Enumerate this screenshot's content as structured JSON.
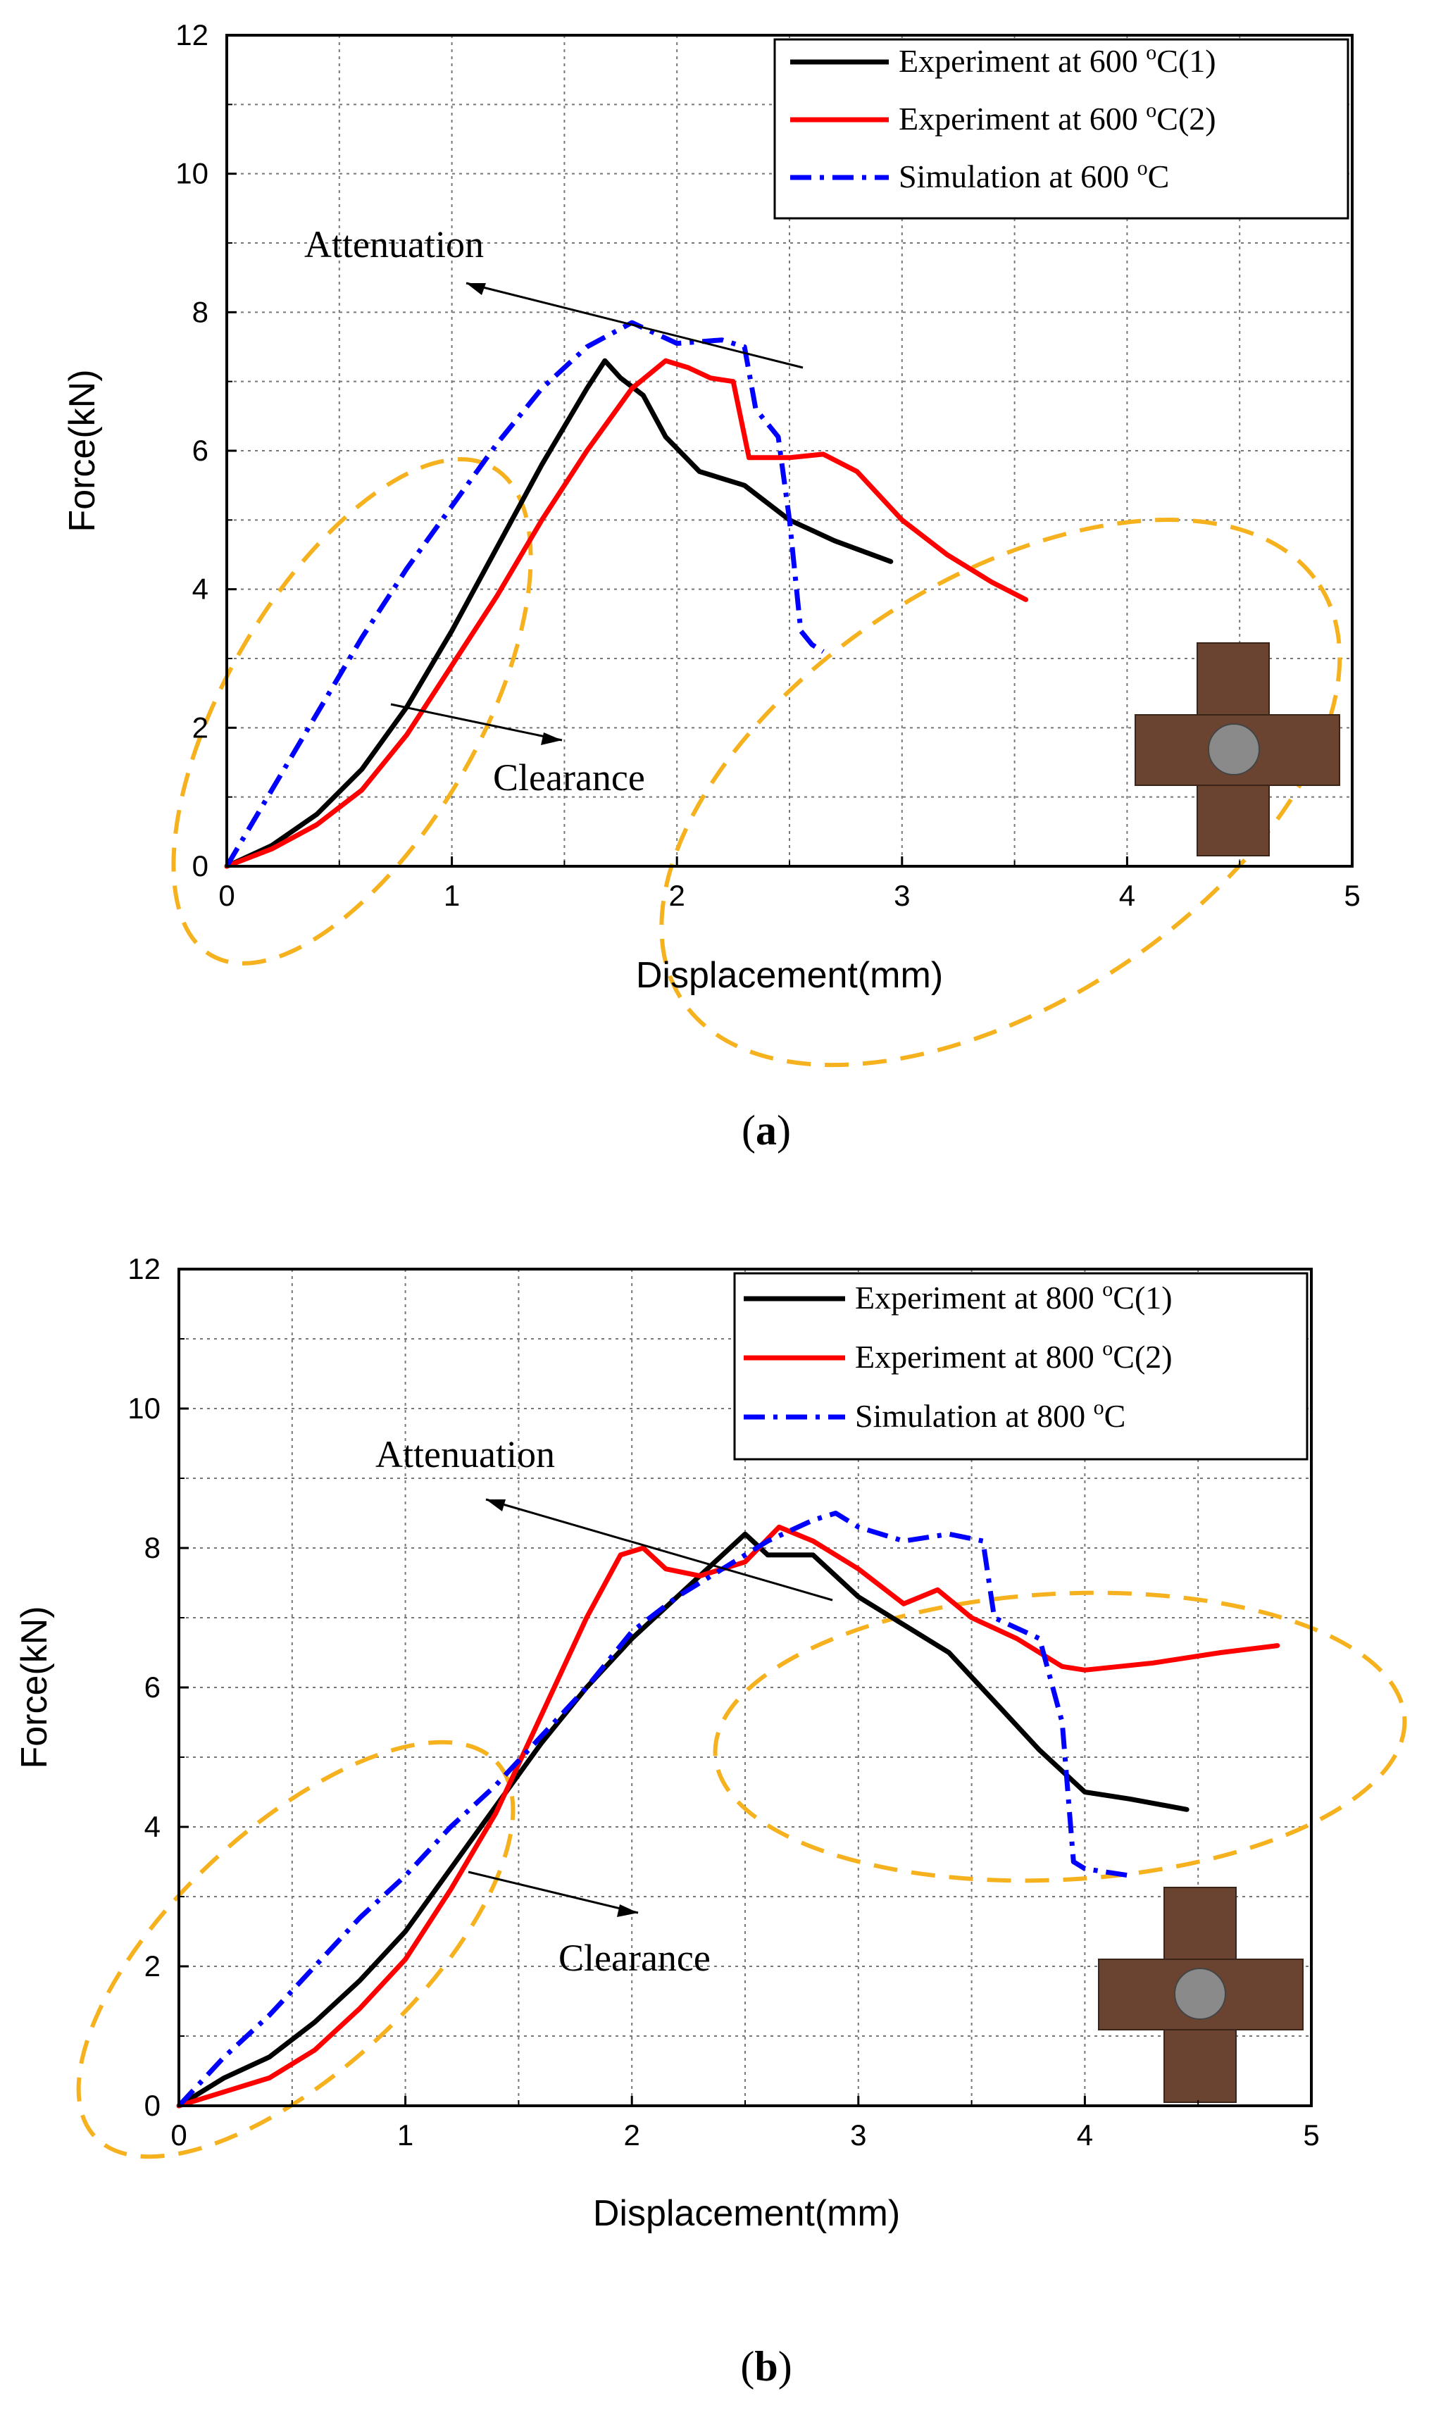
{
  "chart_data": [
    {
      "type": "line",
      "panel_label": "(a)",
      "panel_label_letter": "a",
      "xlabel": "Displacement(mm)",
      "ylabel": "Force(kN)",
      "xlim": [
        0,
        5
      ],
      "ylim": [
        0,
        12
      ],
      "x_ticks": [
        "0",
        "1",
        "2",
        "3",
        "4",
        "5"
      ],
      "y_ticks": [
        "0",
        "2",
        "4",
        "6",
        "8",
        "10",
        "12"
      ],
      "grid": true,
      "legend_position": "top-right",
      "annotations": [
        "Attenuation",
        "Clearance"
      ],
      "series": [
        {
          "name": "Experiment at 600 °C(1)",
          "legend_base": "Experiment at 600 ",
          "legend_sup": "o",
          "legend_tail": "C(1)",
          "color": "#000000",
          "dash": "solid",
          "x": [
            0,
            0.2,
            0.4,
            0.6,
            0.8,
            1.0,
            1.2,
            1.4,
            1.6,
            1.68,
            1.75,
            1.85,
            1.95,
            2.1,
            2.3,
            2.5,
            2.7,
            2.95
          ],
          "y": [
            0,
            0.3,
            0.75,
            1.4,
            2.3,
            3.4,
            4.6,
            5.8,
            6.9,
            7.3,
            7.05,
            6.8,
            6.2,
            5.7,
            5.5,
            5.0,
            4.7,
            4.4
          ]
        },
        {
          "name": "Experiment at 600 °C(2)",
          "legend_base": "Experiment at 600 ",
          "legend_sup": "o",
          "legend_tail": "C(2)",
          "color": "#ff0000",
          "dash": "solid",
          "x": [
            0,
            0.2,
            0.4,
            0.6,
            0.8,
            1.0,
            1.2,
            1.4,
            1.6,
            1.8,
            1.95,
            2.05,
            2.15,
            2.25,
            2.32,
            2.5,
            2.65,
            2.8,
            3.0,
            3.2,
            3.4,
            3.55
          ],
          "y": [
            0,
            0.25,
            0.6,
            1.1,
            1.9,
            2.9,
            3.9,
            5.0,
            6.0,
            6.9,
            7.3,
            7.2,
            7.05,
            7.0,
            5.9,
            5.9,
            5.95,
            5.7,
            5.0,
            4.5,
            4.1,
            3.85
          ]
        },
        {
          "name": "Simulation at 600 °C",
          "legend_base": "Simulation at 600 ",
          "legend_sup": "o",
          "legend_tail": "C",
          "color": "#0000ff",
          "dash": "dashdot",
          "x": [
            0,
            0.2,
            0.4,
            0.6,
            0.8,
            1.0,
            1.2,
            1.4,
            1.6,
            1.8,
            2.0,
            2.2,
            2.3,
            2.35,
            2.45,
            2.5,
            2.55,
            2.6,
            2.65
          ],
          "y": [
            0,
            1.1,
            2.2,
            3.3,
            4.3,
            5.2,
            6.1,
            6.9,
            7.5,
            7.85,
            7.55,
            7.6,
            7.5,
            6.6,
            6.2,
            5.0,
            3.4,
            3.2,
            3.1
          ]
        }
      ]
    },
    {
      "type": "line",
      "panel_label": "(b)",
      "panel_label_letter": "b",
      "xlabel": "Displacement(mm)",
      "ylabel": "Force(kN)",
      "xlim": [
        0,
        5
      ],
      "ylim": [
        0,
        12
      ],
      "x_ticks": [
        "0",
        "1",
        "2",
        "3",
        "4",
        "5"
      ],
      "y_ticks": [
        "0",
        "2",
        "4",
        "6",
        "8",
        "10",
        "12"
      ],
      "grid": true,
      "legend_position": "top-right",
      "annotations": [
        "Attenuation",
        "Clearance"
      ],
      "series": [
        {
          "name": "Experiment at 800 °C(1)",
          "legend_base": "Experiment at 800 ",
          "legend_sup": "o",
          "legend_tail": "C(1)",
          "color": "#000000",
          "dash": "solid",
          "x": [
            0,
            0.2,
            0.4,
            0.6,
            0.8,
            1.0,
            1.2,
            1.4,
            1.6,
            1.8,
            2.0,
            2.2,
            2.4,
            2.5,
            2.6,
            2.8,
            3.0,
            3.2,
            3.4,
            3.6,
            3.8,
            4.0,
            4.2,
            4.45
          ],
          "y": [
            0,
            0.4,
            0.7,
            1.2,
            1.8,
            2.5,
            3.4,
            4.3,
            5.2,
            6.0,
            6.7,
            7.3,
            7.9,
            8.2,
            7.9,
            7.9,
            7.3,
            6.9,
            6.5,
            5.8,
            5.1,
            4.5,
            4.4,
            4.25
          ]
        },
        {
          "name": "Experiment at 800 °C(2)",
          "legend_base": "Experiment at 800 ",
          "legend_sup": "o",
          "legend_tail": "C(2)",
          "color": "#ff0000",
          "dash": "solid",
          "x": [
            0,
            0.2,
            0.4,
            0.6,
            0.8,
            1.0,
            1.2,
            1.4,
            1.6,
            1.8,
            1.95,
            2.05,
            2.15,
            2.3,
            2.5,
            2.65,
            2.8,
            3.0,
            3.2,
            3.35,
            3.5,
            3.7,
            3.9,
            4.0,
            4.3,
            4.6,
            4.85
          ],
          "y": [
            0,
            0.2,
            0.4,
            0.8,
            1.4,
            2.1,
            3.1,
            4.2,
            5.6,
            7.0,
            7.9,
            8.0,
            7.7,
            7.6,
            7.8,
            8.3,
            8.1,
            7.7,
            7.2,
            7.4,
            7.0,
            6.7,
            6.3,
            6.25,
            6.35,
            6.5,
            6.6
          ]
        },
        {
          "name": "Simulation at 800 °C",
          "legend_base": "Simulation at 800 ",
          "legend_sup": "o",
          "legend_tail": "C",
          "color": "#0000ff",
          "dash": "dashdot",
          "x": [
            0,
            0.2,
            0.4,
            0.6,
            0.8,
            1.0,
            1.2,
            1.4,
            1.6,
            1.8,
            2.0,
            2.2,
            2.4,
            2.6,
            2.8,
            2.9,
            3.0,
            3.2,
            3.4,
            3.55,
            3.6,
            3.8,
            3.9,
            3.95,
            4.0,
            4.2
          ],
          "y": [
            0,
            0.7,
            1.3,
            2.0,
            2.7,
            3.3,
            4.0,
            4.6,
            5.3,
            6.0,
            6.8,
            7.3,
            7.7,
            8.1,
            8.4,
            8.5,
            8.3,
            8.1,
            8.2,
            8.1,
            7.0,
            6.7,
            5.5,
            3.5,
            3.4,
            3.3
          ]
        }
      ]
    }
  ]
}
